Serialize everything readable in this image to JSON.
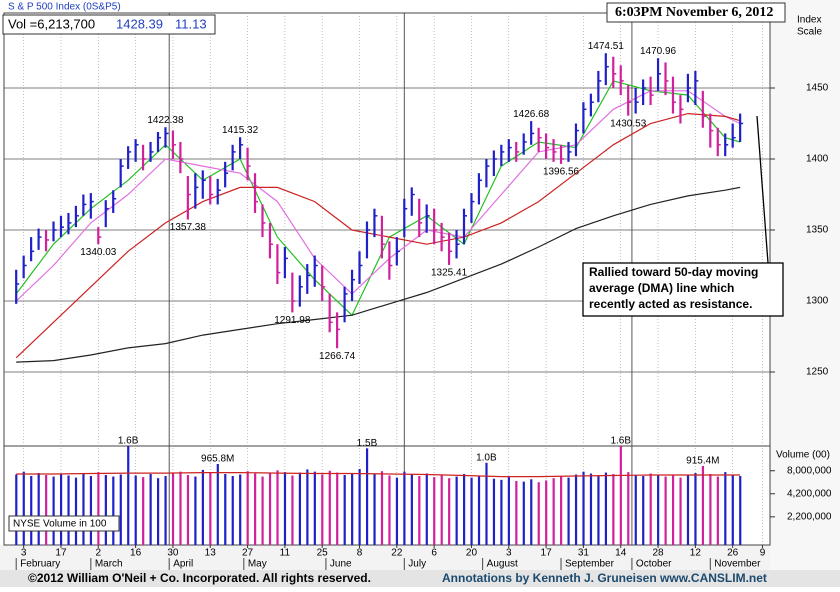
{
  "header": {
    "index_name": "S & P 500 Index (0S&P5)",
    "volume_text": "Vol =6,213,700",
    "price": 1428.39,
    "change": 11.13,
    "timestamp": "6:03PM November 6, 2012"
  },
  "chart_data": {
    "type": "ohlc",
    "y_axis_label": [
      "Index",
      "Scale"
    ],
    "xlim": [
      -3,
      202
    ],
    "ylim": [
      1200,
      1500
    ],
    "yticks": [
      1250,
      1300,
      1350,
      1400,
      1450
    ],
    "grid": true,
    "up_color": "#2020c8",
    "down_color": "#d0209c",
    "xticks": [
      {
        "value": 2,
        "label": "3"
      },
      {
        "value": 12,
        "label": "17"
      },
      {
        "value": 22,
        "label": "2"
      },
      {
        "value": 32,
        "label": "16"
      },
      {
        "value": 42,
        "label": "30"
      },
      {
        "value": 52,
        "label": "13"
      },
      {
        "value": 62,
        "label": "27"
      },
      {
        "value": 72,
        "label": "11"
      },
      {
        "value": 82,
        "label": "25"
      },
      {
        "value": 92,
        "label": "8"
      },
      {
        "value": 102,
        "label": "22"
      },
      {
        "value": 112,
        "label": "6"
      },
      {
        "value": 122,
        "label": "20"
      },
      {
        "value": 132,
        "label": "3"
      },
      {
        "value": 142,
        "label": "17"
      },
      {
        "value": 152,
        "label": "31"
      },
      {
        "value": 162,
        "label": "14"
      },
      {
        "value": 172,
        "label": "28"
      },
      {
        "value": 182,
        "label": "12"
      },
      {
        "value": 192,
        "label": "26"
      },
      {
        "value": 200,
        "label": "9"
      }
    ],
    "months": [
      {
        "value": 0,
        "label": "February"
      },
      {
        "value": 20,
        "label": "March"
      },
      {
        "value": 41,
        "label": "April"
      },
      {
        "value": 61,
        "label": "May"
      },
      {
        "value": 83,
        "label": "June"
      },
      {
        "value": 104,
        "label": "July"
      },
      {
        "value": 125,
        "label": "August"
      },
      {
        "value": 146,
        "label": "September"
      },
      {
        "value": 165,
        "label": "October"
      },
      {
        "value": 186,
        "label": "November"
      }
    ],
    "x": [
      0,
      2,
      4,
      6,
      8,
      10,
      12,
      14,
      16,
      18,
      20,
      22,
      24,
      26,
      28,
      30,
      32,
      34,
      36,
      38,
      40,
      42,
      44,
      46,
      48,
      50,
      52,
      54,
      56,
      58,
      60,
      62,
      64,
      66,
      68,
      70,
      72,
      74,
      76,
      78,
      80,
      82,
      84,
      86,
      88,
      90,
      92,
      94,
      96,
      98,
      100,
      102,
      104,
      106,
      108,
      110,
      112,
      114,
      116,
      118,
      120,
      122,
      124,
      126,
      128,
      130,
      132,
      134,
      136,
      138,
      140,
      142,
      144,
      146,
      148,
      150,
      152,
      154,
      156,
      158,
      160,
      162,
      164,
      166,
      168,
      170,
      172,
      174,
      176,
      178,
      180,
      182,
      184,
      186,
      188,
      190,
      192,
      194
    ],
    "high": [
      1322,
      1332,
      1345,
      1351,
      1350,
      1356,
      1360,
      1362,
      1367,
      1375,
      1376,
      1352,
      1371,
      1378,
      1400,
      1409,
      1414,
      1410,
      1412,
      1419,
      1422.38,
      1420,
      1412,
      1388,
      1390,
      1392,
      1388,
      1386,
      1398,
      1410,
      1415.32,
      1408,
      1390,
      1368,
      1355,
      1340,
      1338,
      1320,
      1318,
      1326,
      1332,
      1325,
      1305,
      1292,
      1310,
      1322,
      1335,
      1356,
      1365,
      1360,
      1342,
      1345,
      1372,
      1380,
      1372,
      1368,
      1365,
      1355,
      1348,
      1350,
      1365,
      1376,
      1390,
      1400,
      1406,
      1410,
      1414,
      1412,
      1418,
      1426.68,
      1422,
      1418,
      1414,
      1410,
      1412,
      1425,
      1440,
      1446,
      1462,
      1474.51,
      1472,
      1466,
      1452,
      1450,
      1456,
      1458,
      1470.96,
      1468,
      1458,
      1445,
      1460,
      1462,
      1448,
      1432,
      1422,
      1418,
      1425,
      1432
    ],
    "low": [
      1298,
      1316,
      1328,
      1336,
      1335,
      1342,
      1345,
      1347,
      1352,
      1360,
      1358,
      1340.03,
      1352,
      1362,
      1380,
      1393,
      1398,
      1392,
      1398,
      1405,
      1408,
      1400,
      1390,
      1357.38,
      1365,
      1372,
      1368,
      1368,
      1380,
      1392,
      1400,
      1385,
      1362,
      1345,
      1330,
      1312,
      1316,
      1291.98,
      1296,
      1305,
      1310,
      1300,
      1278,
      1266.74,
      1285,
      1300,
      1312,
      1330,
      1345,
      1330,
      1315,
      1325,
      1345,
      1360,
      1345,
      1348,
      1340,
      1335,
      1325.41,
      1330,
      1340,
      1355,
      1368,
      1380,
      1388,
      1395,
      1398,
      1398,
      1403,
      1410,
      1405,
      1400,
      1398,
      1396.56,
      1398,
      1402,
      1418,
      1430,
      1440,
      1452,
      1450,
      1445,
      1430.53,
      1432,
      1438,
      1438,
      1448,
      1445,
      1432,
      1425,
      1440,
      1438,
      1422,
      1408,
      1402,
      1402,
      1408,
      1412
    ],
    "close": [
      1312,
      1325,
      1335,
      1345,
      1343,
      1350,
      1352,
      1355,
      1360,
      1368,
      1370,
      1345,
      1365,
      1372,
      1395,
      1405,
      1410,
      1400,
      1405,
      1415,
      1418,
      1410,
      1400,
      1375,
      1380,
      1385,
      1375,
      1378,
      1390,
      1405,
      1410,
      1395,
      1370,
      1355,
      1340,
      1320,
      1330,
      1300,
      1310,
      1318,
      1325,
      1310,
      1285,
      1280,
      1305,
      1315,
      1325,
      1350,
      1360,
      1340,
      1325,
      1335,
      1365,
      1375,
      1355,
      1360,
      1350,
      1345,
      1335,
      1340,
      1360,
      1370,
      1385,
      1395,
      1400,
      1405,
      1408,
      1405,
      1412,
      1418,
      1415,
      1408,
      1405,
      1400,
      1405,
      1420,
      1435,
      1440,
      1455,
      1465,
      1460,
      1455,
      1440,
      1440,
      1450,
      1445,
      1460,
      1455,
      1440,
      1435,
      1450,
      1455,
      1430,
      1420,
      1410,
      1410,
      1415,
      1425
    ],
    "high_labels": [
      {
        "x": 40,
        "value": 1422.38
      },
      {
        "x": 60,
        "value": 1415.32
      },
      {
        "x": 138,
        "value": 1426.68
      },
      {
        "x": 158,
        "value": 1474.51
      },
      {
        "x": 172,
        "value": 1470.96
      }
    ],
    "low_labels": [
      {
        "x": 22,
        "value": 1340.03
      },
      {
        "x": 46,
        "value": 1357.38
      },
      {
        "x": 74,
        "value": 1291.98
      },
      {
        "x": 86,
        "value": 1266.74
      },
      {
        "x": 116,
        "value": 1325.41
      },
      {
        "x": 146,
        "value": 1396.56
      },
      {
        "x": 164,
        "value": 1430.53
      }
    ],
    "ma_x": [
      0,
      10,
      20,
      30,
      40,
      50,
      60,
      70,
      80,
      90,
      100,
      110,
      120,
      130,
      140,
      150,
      160,
      170,
      180,
      190,
      194
    ],
    "moving_averages": [
      {
        "color": "#22c022",
        "values": [
          1305,
          1340,
          1365,
          1385,
          1410,
          1385,
          1400,
          1345,
          1315,
          1290,
          1345,
          1360,
          1340,
          1395,
          1412,
          1408,
          1455,
          1448,
          1445,
          1415,
          1412
        ]
      },
      {
        "color": "#e070e0",
        "values": [
          1300,
          1325,
          1355,
          1375,
          1400,
          1395,
          1390,
          1370,
          1330,
          1305,
          1330,
          1350,
          1345,
          1375,
          1405,
          1410,
          1435,
          1448,
          1448,
          1430,
          1425
        ]
      },
      {
        "color": "#cc2222",
        "values": [
          1260,
          1285,
          1310,
          1335,
          1355,
          1370,
          1380,
          1380,
          1370,
          1350,
          1345,
          1340,
          1345,
          1355,
          1370,
          1390,
          1410,
          1425,
          1432,
          1430,
          1427
        ]
      },
      {
        "color": "#222222",
        "values": [
          1257,
          1258,
          1262,
          1267,
          1270,
          1276,
          1280,
          1284,
          1287,
          1290,
          1298,
          1306,
          1316,
          1326,
          1338,
          1351,
          1360,
          1368,
          1374,
          1378,
          1380
        ]
      }
    ],
    "annotation_lines": [
      "Rallied toward 50-day moving",
      "average (DMA) line which",
      "recently acted as resistance."
    ],
    "volume": {
      "label": "Volume (00)",
      "legend": "NYSE Volume in 100",
      "log_scale": true,
      "ylim": [
        1000000,
        16000000
      ],
      "yticks": [
        {
          "value": 8000000,
          "label": "8,000,000"
        },
        {
          "value": 4200000,
          "label": "4,200,000"
        },
        {
          "value": 2200000,
          "label": "2,200,000"
        }
      ],
      "values": [
        7200000,
        7800000,
        6900000,
        7500000,
        7100000,
        6800000,
        7400000,
        7000000,
        6600000,
        7300000,
        6900000,
        7700000,
        7100000,
        6800000,
        7200000,
        16000000,
        7000000,
        6700000,
        7300000,
        6500000,
        6900000,
        7400000,
        7800000,
        7100000,
        6800000,
        8200000,
        7600000,
        9658000,
        7300000,
        6900000,
        7200000,
        7900000,
        7400000,
        6800000,
        7500000,
        8100000,
        7700000,
        7000000,
        7600000,
        8300000,
        7800000,
        7200000,
        8000000,
        7600000,
        7100000,
        7500000,
        8400000,
        15000000,
        7300000,
        7900000,
        7000000,
        6600000,
        7800000,
        7200000,
        6900000,
        7400000,
        6700000,
        7100000,
        6500000,
        6800000,
        7300000,
        6600000,
        6900000,
        10000000,
        6400000,
        6200000,
        6700000,
        6000000,
        5900000,
        6300000,
        5800000,
        6100000,
        6500000,
        6900000,
        6600000,
        7200000,
        7800000,
        7400000,
        7000000,
        7600000,
        7300000,
        16000000,
        7700000,
        7100000,
        6900000,
        7400000,
        7000000,
        6800000,
        7200000,
        6600000,
        7100000,
        7500000,
        9154000,
        7300000,
        6800000,
        7700000,
        7200000,
        6900000
      ],
      "value_labels": [
        null,
        null,
        null,
        null,
        null,
        null,
        null,
        null,
        null,
        null,
        null,
        null,
        null,
        null,
        null,
        "1.6B",
        null,
        null,
        null,
        null,
        null,
        null,
        null,
        null,
        null,
        null,
        null,
        "965.8M",
        null,
        null,
        null,
        null,
        null,
        null,
        null,
        null,
        null,
        null,
        null,
        null,
        null,
        null,
        null,
        null,
        null,
        null,
        null,
        "1.5B",
        null,
        null,
        null,
        null,
        null,
        null,
        null,
        null,
        null,
        null,
        null,
        null,
        null,
        null,
        null,
        "1.0B",
        null,
        null,
        null,
        null,
        null,
        null,
        null,
        null,
        null,
        null,
        null,
        null,
        null,
        null,
        null,
        null,
        null,
        "1.6B",
        null,
        null,
        null,
        null,
        null,
        null,
        null,
        null,
        null,
        null,
        "915.4M",
        null,
        null,
        null,
        null,
        null
      ],
      "avg_color": "#cc2222",
      "avg_values": [
        7300000,
        7300000,
        7400000,
        7500000,
        7500000,
        7600000,
        7600000,
        7500000,
        7400000,
        7400000,
        7300000,
        7200000,
        7000000,
        6800000,
        6800000,
        6900000,
        7000000,
        7100000,
        7100000,
        7100000,
        7100000
      ]
    }
  },
  "footer": {
    "copyright": "©2012 William O'Neil + Co. Incorporated. All rights reserved.",
    "credits": "Annotations by Kenneth J. Gruneisen www.CANSLIM.net"
  }
}
